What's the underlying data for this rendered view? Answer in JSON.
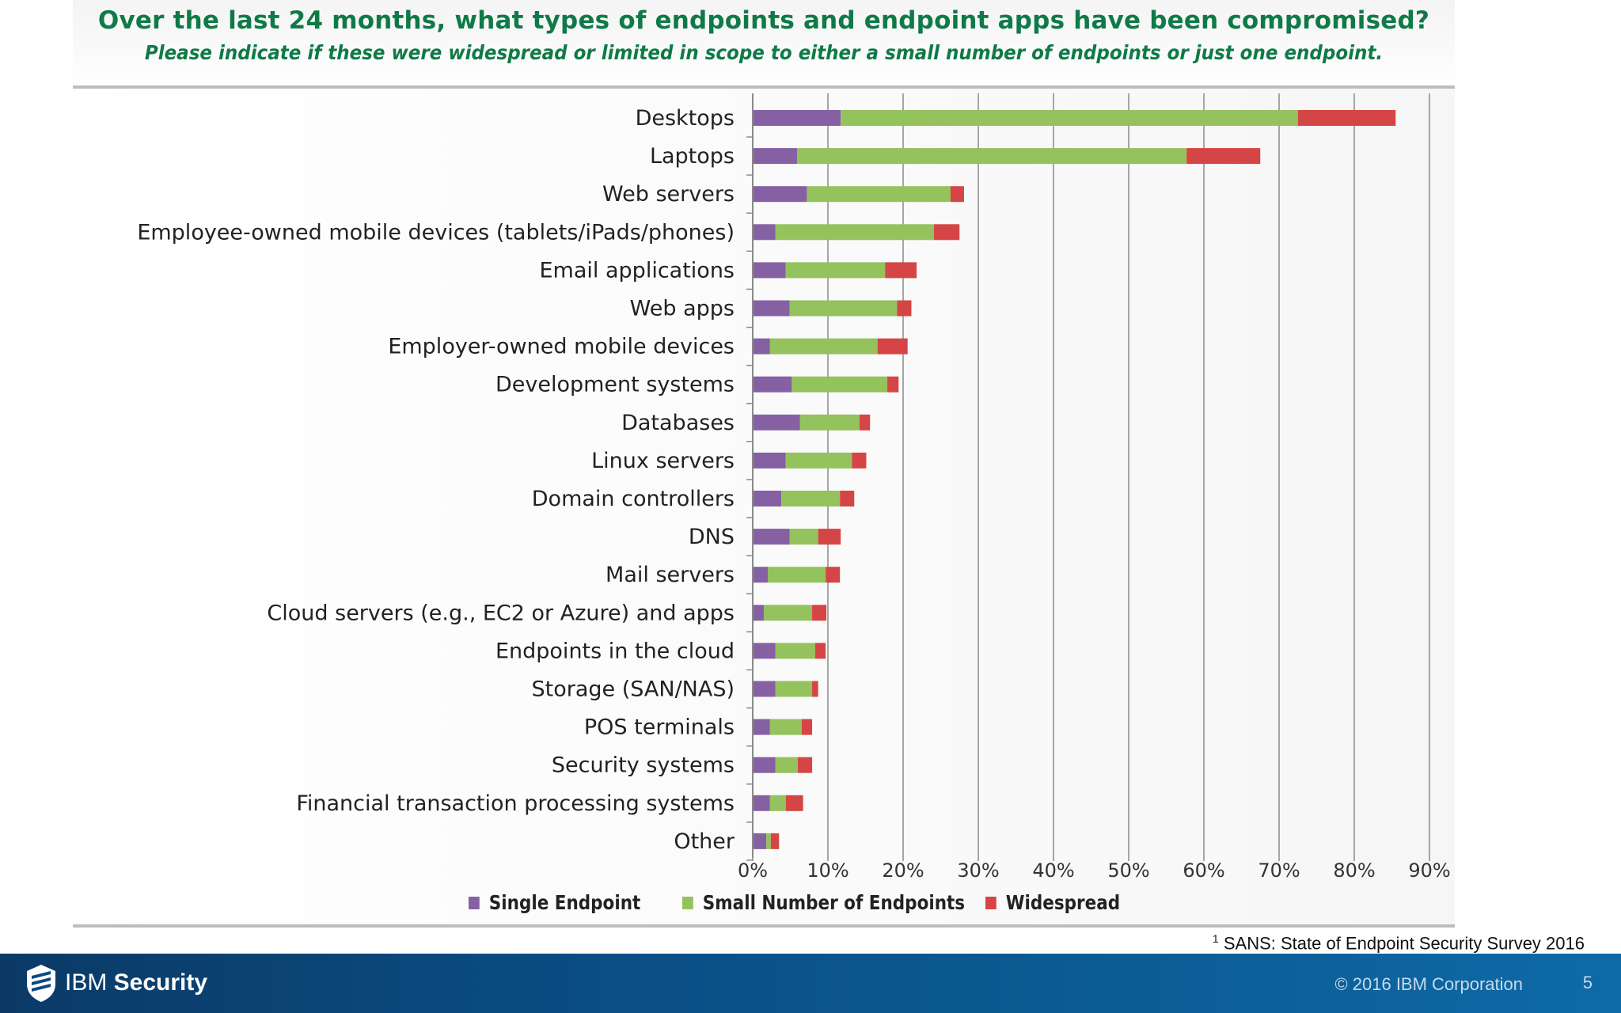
{
  "header": {
    "title": "Over the last 24 months, what types of endpoints and endpoint apps have been compromised?",
    "subtitle": "Please indicate if these were widespread or limited in scope to either a small number of endpoints or just one endpoint."
  },
  "chart_data": {
    "type": "bar",
    "orientation": "horizontal",
    "stacked": true,
    "categories": [
      "Desktops",
      "Laptops",
      "Web servers",
      "Employee-owned mobile devices (tablets/iPads/phones)",
      "Email applications",
      "Web apps",
      "Employer-owned mobile devices",
      "Development systems",
      "Databases",
      "Linux servers",
      "Domain controllers",
      "DNS",
      "Mail servers",
      "Cloud servers (e.g., EC2 or Azure) and apps",
      "Endpoints in the cloud",
      "Storage (SAN/NAS)",
      "POS terminals",
      "Security systems",
      "Financial transaction processing systems",
      "Other"
    ],
    "series": [
      {
        "name": "Single Endpoint",
        "color": "#8561a4",
        "values": [
          11.7,
          5.9,
          7.2,
          3.0,
          4.4,
          4.9,
          2.3,
          5.2,
          6.3,
          4.4,
          3.8,
          4.9,
          2.0,
          1.5,
          3.0,
          3.0,
          2.3,
          3.0,
          2.3,
          1.8
        ]
      },
      {
        "name": "Small Number of Endpoints",
        "color": "#94c25c",
        "values": [
          60.8,
          51.8,
          19.1,
          21.1,
          13.2,
          14.3,
          14.3,
          12.7,
          7.9,
          8.8,
          7.8,
          3.8,
          7.7,
          6.4,
          5.3,
          4.9,
          4.2,
          3.0,
          2.1,
          0.6
        ]
      },
      {
        "name": "Widespread",
        "color": "#d64545",
        "values": [
          13.0,
          9.8,
          1.8,
          3.4,
          4.2,
          1.9,
          4.0,
          1.5,
          1.4,
          1.9,
          1.9,
          3.0,
          1.9,
          1.9,
          1.4,
          0.8,
          1.4,
          1.9,
          2.3,
          1.1
        ]
      }
    ],
    "xlim": [
      0,
      90
    ],
    "xticks": [
      "0%",
      "10%",
      "20%",
      "30%",
      "40%",
      "50%",
      "60%",
      "70%",
      "80%",
      "90%"
    ],
    "grid": true,
    "legend_position": "bottom"
  },
  "footnote": {
    "marker": "1",
    "text": "SANS: State of Endpoint Security Survey 2016"
  },
  "footer": {
    "brand_light": "IBM ",
    "brand_bold": "Security",
    "copyright": "© 2016 IBM Corporation",
    "page_number": "5"
  }
}
